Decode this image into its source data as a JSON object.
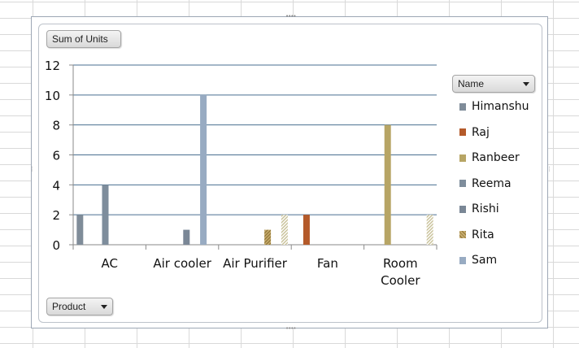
{
  "values_button": {
    "label": "Sum of Units"
  },
  "legend_button": {
    "label": "Name"
  },
  "axis_button": {
    "label": "Product"
  },
  "colors": {
    "Himanshu": "#7f8c99",
    "Raj": "#b45a2a",
    "Ranbeer": "#b7a565",
    "Reema": "#7e8d9c",
    "Rishi": "#7a8796",
    "Rita": "#a88b48",
    "Sam": "#98abc2",
    "pattern": "#c9c29a"
  },
  "chart_data": {
    "type": "bar",
    "categories": [
      "AC",
      "Air cooler",
      "Air Purifier",
      "Fan",
      "Room Cooler"
    ],
    "category_lines": [
      [
        "AC"
      ],
      [
        "Air cooler"
      ],
      [
        "Air Purifier"
      ],
      [
        "Fan"
      ],
      [
        "Room",
        "Cooler"
      ]
    ],
    "ylim": [
      0,
      12
    ],
    "yticks": [
      0,
      2,
      4,
      6,
      8,
      10,
      12
    ],
    "grid": true,
    "legend_position": "right",
    "series": [
      {
        "name": "Himanshu",
        "values": [
          2,
          null,
          null,
          null,
          null
        ]
      },
      {
        "name": "Raj",
        "values": [
          null,
          null,
          null,
          2,
          null
        ]
      },
      {
        "name": "Ranbeer",
        "values": [
          null,
          null,
          null,
          null,
          8
        ]
      },
      {
        "name": "Reema",
        "values": [
          4,
          null,
          null,
          null,
          null
        ]
      },
      {
        "name": "Rishi",
        "values": [
          null,
          1,
          null,
          null,
          null
        ]
      },
      {
        "name": "Rita",
        "values": [
          null,
          null,
          1,
          null,
          null
        ]
      },
      {
        "name": "Sam",
        "values": [
          null,
          10,
          null,
          null,
          null
        ]
      },
      {
        "name": "",
        "values": [
          null,
          null,
          2,
          null,
          2
        ]
      }
    ]
  }
}
